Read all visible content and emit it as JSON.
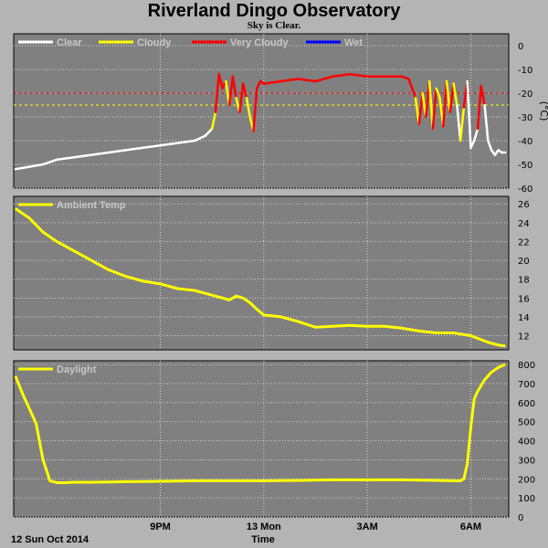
{
  "title": "Riverland Dingo Observatory",
  "subtitle": "Sky is Clear.",
  "footer": {
    "date": "12 Sun Oct 2014",
    "xlabel": "Time"
  },
  "x_ticks": [
    {
      "label": "9PM",
      "h": 3.0
    },
    {
      "label": "13 Mon",
      "h": 6.0
    },
    {
      "label": "3AM",
      "h": 9.0
    },
    {
      "label": "6AM",
      "h": 12.0
    }
  ],
  "x_range_hours": [
    -1.25,
    13.1
  ],
  "colors": {
    "panel_bg": "#808080",
    "clear": "#ffffff",
    "cloudy": "#ffff00",
    "very_cloudy": "#ff0000",
    "wet": "#0000ff",
    "grid": "#d2d2d2",
    "label_text": "#c8c8c8"
  },
  "chart_data": [
    {
      "type": "line",
      "id": "cloud",
      "ylabel": "(°C)",
      "ylim": [
        -60,
        5
      ],
      "yticks": [
        0,
        -10,
        -20,
        -30,
        -40,
        -50,
        -60
      ],
      "thresholds": [
        {
          "y": -20,
          "color": "#ff0000"
        },
        {
          "y": -25,
          "color": "#ffff00"
        }
      ],
      "series": [
        {
          "name": "Clear",
          "color": "#ffffff"
        },
        {
          "name": "Cloudy",
          "color": "#ffff00"
        },
        {
          "name": "Very Cloudy",
          "color": "#ff0000"
        },
        {
          "name": "Wet",
          "color": "#0000ff"
        }
      ],
      "x": [
        -1.2,
        -0.8,
        -0.4,
        0.0,
        0.5,
        1.0,
        1.5,
        2.0,
        2.5,
        3.0,
        3.5,
        4.0,
        4.3,
        4.5,
        4.6,
        4.7,
        4.8,
        4.9,
        5.0,
        5.1,
        5.2,
        5.3,
        5.4,
        5.5,
        5.6,
        5.7,
        5.8,
        5.9,
        6.0,
        6.5,
        7.0,
        7.5,
        8.0,
        8.5,
        9.0,
        9.5,
        10.0,
        10.2,
        10.4,
        10.5,
        10.6,
        10.7,
        10.8,
        10.9,
        11.0,
        11.1,
        11.2,
        11.3,
        11.4,
        11.5,
        11.6,
        11.7,
        11.8,
        11.9,
        12.0,
        12.1,
        12.2,
        12.3,
        12.4,
        12.5,
        12.6,
        12.7,
        12.8,
        12.9,
        13.0
      ],
      "values": [
        -52,
        -51,
        -50,
        -48,
        -47,
        -46,
        -45,
        -44,
        -43,
        -42,
        -41,
        -40,
        -38,
        -35,
        -28,
        -12,
        -18,
        -15,
        -25,
        -13,
        -22,
        -28,
        -16,
        -22,
        -30,
        -36,
        -18,
        -15,
        -16,
        -15,
        -14,
        -15,
        -13,
        -12,
        -13,
        -13,
        -13,
        -14,
        -22,
        -33,
        -20,
        -30,
        -15,
        -35,
        -18,
        -22,
        -34,
        -15,
        -28,
        -16,
        -25,
        -40,
        -26,
        -15,
        -43,
        -40,
        -35,
        -17,
        -25,
        -40,
        -44,
        -46,
        -44,
        -45,
        -45
      ],
      "state": [
        "c",
        "c",
        "c",
        "c",
        "c",
        "c",
        "c",
        "c",
        "c",
        "c",
        "c",
        "c",
        "c",
        "c",
        "y",
        "r",
        "r",
        "r",
        "y",
        "r",
        "r",
        "y",
        "r",
        "r",
        "y",
        "y",
        "r",
        "r",
        "r",
        "r",
        "r",
        "r",
        "r",
        "r",
        "r",
        "r",
        "r",
        "r",
        "r",
        "y",
        "r",
        "y",
        "r",
        "y",
        "r",
        "y",
        "y",
        "r",
        "y",
        "r",
        "y",
        "c",
        "y",
        "r",
        "c",
        "c",
        "c",
        "r",
        "r",
        "c",
        "c",
        "c",
        "c",
        "c",
        "c"
      ]
    },
    {
      "type": "line",
      "id": "ambient",
      "legend": "Ambient Temp",
      "ylim": [
        10.5,
        26.8
      ],
      "yticks": [
        12,
        14,
        16,
        18,
        20,
        22,
        24,
        26
      ],
      "color": "#ffff00",
      "x": [
        -1.2,
        -0.8,
        -0.4,
        0.0,
        0.5,
        1.0,
        1.5,
        2.0,
        2.5,
        3.0,
        3.5,
        4.0,
        4.5,
        5.0,
        5.2,
        5.4,
        5.6,
        5.8,
        6.0,
        6.5,
        7.0,
        7.5,
        8.0,
        8.5,
        9.0,
        9.5,
        10.0,
        10.5,
        11.0,
        11.5,
        12.0,
        12.5,
        12.8,
        13.0
      ],
      "values": [
        25.5,
        24.5,
        23.0,
        22.0,
        21.0,
        20.0,
        19.0,
        18.3,
        17.8,
        17.5,
        17.0,
        16.8,
        16.3,
        15.8,
        16.2,
        16.0,
        15.5,
        14.8,
        14.2,
        14.0,
        13.5,
        12.9,
        13.0,
        13.1,
        13.0,
        13.0,
        12.8,
        12.5,
        12.3,
        12.3,
        12.0,
        11.3,
        11.0,
        10.9
      ]
    },
    {
      "type": "line",
      "id": "daylight",
      "legend": "Daylight",
      "ylim": [
        0,
        820
      ],
      "yticks": [
        0,
        100,
        200,
        300,
        400,
        500,
        600,
        700,
        800
      ],
      "color": "#ffff00",
      "x": [
        -1.2,
        -1.0,
        -0.8,
        -0.6,
        -0.4,
        -0.2,
        0.0,
        0.2,
        0.5,
        1.0,
        2.0,
        3.0,
        4.0,
        5.0,
        6.0,
        7.0,
        8.0,
        9.0,
        10.0,
        11.0,
        11.5,
        11.7,
        11.8,
        11.9,
        12.0,
        12.1,
        12.2,
        12.4,
        12.6,
        12.8,
        13.0
      ],
      "values": [
        740,
        650,
        570,
        490,
        300,
        190,
        180,
        180,
        182,
        182,
        185,
        187,
        190,
        190,
        190,
        192,
        195,
        195,
        195,
        192,
        190,
        190,
        200,
        280,
        470,
        620,
        660,
        720,
        760,
        785,
        800
      ]
    }
  ]
}
